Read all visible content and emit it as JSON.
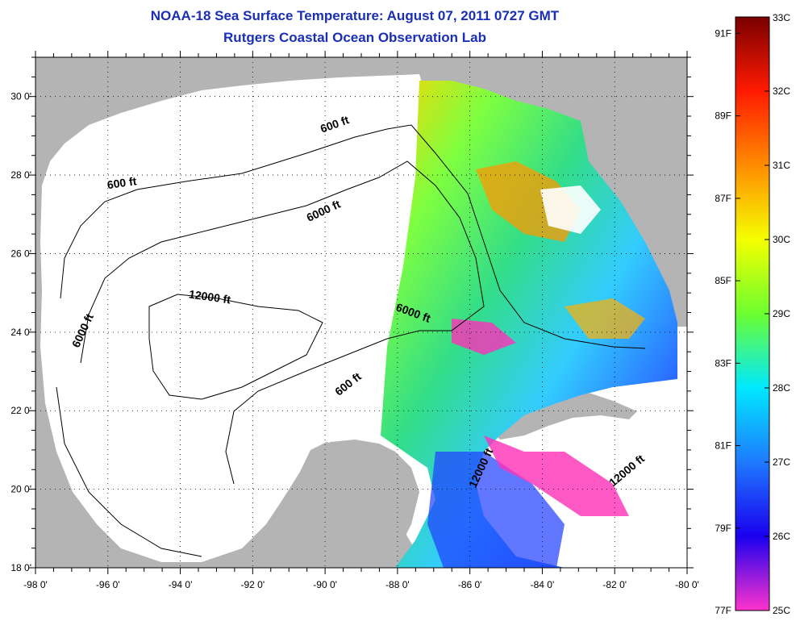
{
  "title": {
    "line1": "NOAA-18 Sea Surface Temperature:  August 07, 2011 0727 GMT",
    "line2": "Rutgers Coastal Ocean Observation Lab"
  },
  "map": {
    "lon_ticks": [
      "-98 0'",
      "-96 0'",
      "-94 0'",
      "-92 0'",
      "-90 0'",
      "-88 0'",
      "-86 0'",
      "-84 0'",
      "-82 0'",
      "-80 0'"
    ],
    "lat_ticks": [
      "30 0'",
      "28 0'",
      "26 0'",
      "24 0'",
      "22 0'",
      "20 0'",
      "18 0'"
    ],
    "lon_range": [
      -98,
      -80
    ],
    "lat_range": [
      18,
      31
    ],
    "land_color": "#b4b4b4",
    "nodata_color": "#ffffff",
    "grid": "dotted",
    "contour_labels": [
      {
        "text": "600 ft",
        "lon": -95.6,
        "lat": 27.7,
        "rot": -8
      },
      {
        "text": "600 ft",
        "lon": -89.7,
        "lat": 29.2,
        "rot": -20
      },
      {
        "text": "6000 ft",
        "lon": -90.0,
        "lat": 27.0,
        "rot": -25
      },
      {
        "text": "6000 ft",
        "lon": -96.6,
        "lat": 24.0,
        "rot": -65
      },
      {
        "text": "12000 ft",
        "lon": -93.2,
        "lat": 24.8,
        "rot": 8
      },
      {
        "text": "6000 ft",
        "lon": -87.6,
        "lat": 24.4,
        "rot": 20
      },
      {
        "text": "600 ft",
        "lon": -89.3,
        "lat": 22.6,
        "rot": -38
      },
      {
        "text": "12000 ft",
        "lon": -85.6,
        "lat": 20.5,
        "rot": -65
      },
      {
        "text": "12000 ft",
        "lon": -81.6,
        "lat": 20.4,
        "rot": -40
      }
    ]
  },
  "colorbar": {
    "celsius_labels": [
      "33C",
      "32C",
      "31C",
      "30C",
      "29C",
      "28C",
      "27C",
      "26C",
      "25C"
    ],
    "fahrenheit_labels": [
      "91F",
      "89F",
      "87F",
      "85F",
      "83F",
      "81F",
      "79F",
      "77F"
    ],
    "celsius_values": [
      33,
      32,
      31,
      30,
      29,
      28,
      27,
      26,
      25
    ],
    "fahrenheit_values": [
      91,
      89,
      87,
      85,
      83,
      81,
      79,
      77
    ],
    "range_c": [
      25,
      33
    ]
  }
}
